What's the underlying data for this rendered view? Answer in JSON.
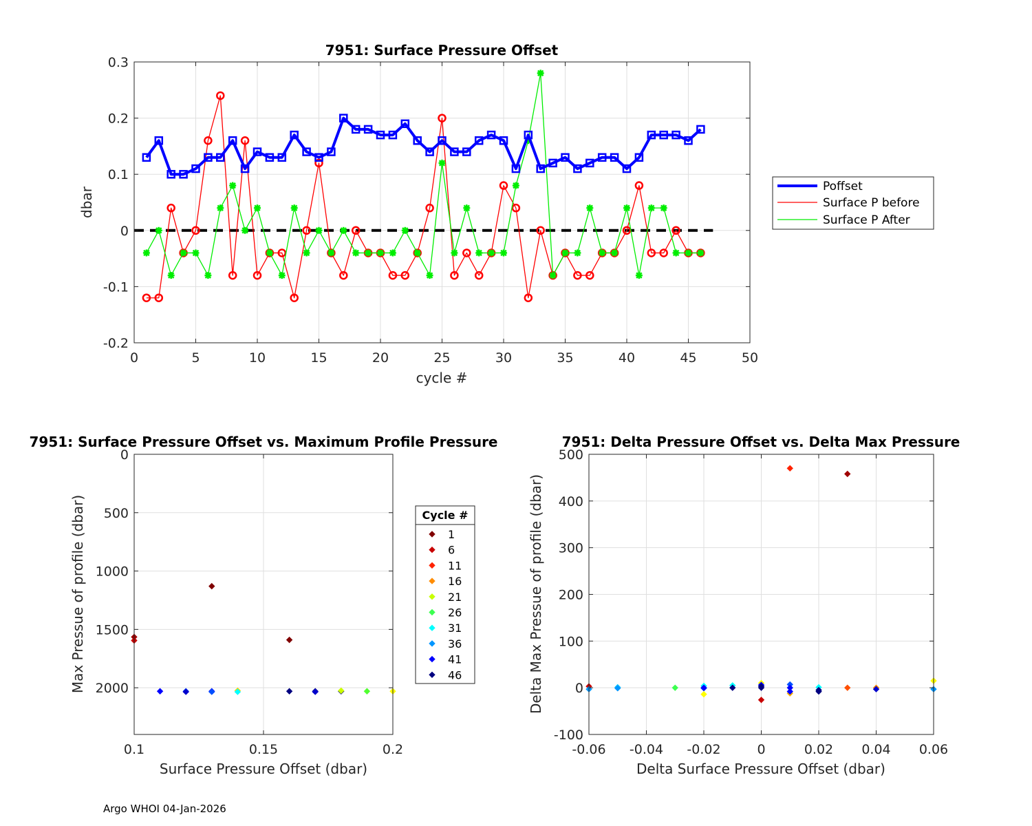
{
  "footer": "Argo WHOI 04-Jan-2026",
  "chart_data": [
    {
      "id": "top",
      "type": "line",
      "title": "7951: Surface Pressure Offset",
      "xlabel": "cycle #",
      "ylabel": "dbar",
      "xlim": [
        0,
        50
      ],
      "ylim": [
        -0.2,
        0.3
      ],
      "xticks": [
        0,
        5,
        10,
        15,
        20,
        25,
        30,
        35,
        40,
        45,
        50
      ],
      "yticks": [
        -0.2,
        -0.1,
        0,
        0.1,
        0.2,
        0.3
      ],
      "grid": true,
      "legend_position": "outside-right",
      "zero_line": {
        "from": 0,
        "to": 47,
        "color": "#000000",
        "style": "dashed"
      },
      "x": [
        1,
        2,
        3,
        4,
        5,
        6,
        7,
        8,
        9,
        10,
        11,
        12,
        13,
        14,
        15,
        16,
        17,
        18,
        19,
        20,
        21,
        22,
        23,
        24,
        25,
        26,
        27,
        28,
        29,
        30,
        31,
        32,
        33,
        34,
        35,
        36,
        37,
        38,
        39,
        40,
        41,
        42,
        43,
        44,
        45,
        46
      ],
      "series": [
        {
          "name": "Poffset",
          "color": "#0000ff",
          "marker": "square",
          "width": "thick",
          "values": [
            0.13,
            0.16,
            0.1,
            0.1,
            0.11,
            0.13,
            0.13,
            0.16,
            0.11,
            0.14,
            0.13,
            0.13,
            0.17,
            0.14,
            0.13,
            0.14,
            0.2,
            0.18,
            0.18,
            0.17,
            0.17,
            0.19,
            0.16,
            0.14,
            0.16,
            0.14,
            0.14,
            0.16,
            0.17,
            0.16,
            0.11,
            0.17,
            0.11,
            0.12,
            0.13,
            0.11,
            0.12,
            0.13,
            0.13,
            0.11,
            0.13,
            0.17,
            0.17,
            0.17,
            0.16,
            0.18
          ]
        },
        {
          "name": "Surface P before",
          "color": "#ff0000",
          "marker": "circle",
          "width": "thin",
          "values": [
            -0.12,
            -0.12,
            0.04,
            -0.04,
            0.0,
            0.16,
            0.24,
            -0.08,
            0.16,
            -0.08,
            -0.04,
            -0.04,
            -0.12,
            0.0,
            0.12,
            -0.04,
            -0.08,
            0.0,
            -0.04,
            -0.04,
            -0.08,
            -0.08,
            -0.04,
            0.04,
            0.2,
            -0.08,
            -0.04,
            -0.08,
            -0.04,
            0.08,
            0.04,
            -0.12,
            0.0,
            -0.08,
            -0.04,
            -0.08,
            -0.08,
            -0.04,
            -0.04,
            0.0,
            0.08,
            -0.04,
            -0.04,
            0.0,
            -0.04,
            -0.04
          ]
        },
        {
          "name": "Surface P After",
          "color": "#00ee00",
          "marker": "star",
          "width": "thin",
          "values": [
            -0.04,
            0.0,
            -0.08,
            -0.04,
            -0.04,
            -0.08,
            0.04,
            0.08,
            0.0,
            0.04,
            -0.04,
            -0.08,
            0.04,
            -0.04,
            0.0,
            -0.04,
            0.0,
            -0.04,
            -0.04,
            -0.04,
            -0.04,
            0.0,
            -0.04,
            -0.08,
            0.12,
            -0.04,
            0.04,
            -0.04,
            -0.04,
            -0.04,
            0.08,
            0.16,
            0.28,
            -0.08,
            -0.04,
            -0.04,
            0.04,
            -0.04,
            -0.04,
            0.04,
            -0.08,
            0.04,
            0.04,
            -0.04,
            -0.04,
            -0.04
          ]
        }
      ]
    },
    {
      "id": "bottom-left",
      "type": "scatter",
      "title": "7951: Surface Pressure Offset vs. Maximum Profile Pressure",
      "xlabel": "Surface Pressure Offset (dbar)",
      "ylabel": "Max Pressue of profile (dbar)",
      "xlim": [
        0.1,
        0.2
      ],
      "ylim": [
        0,
        2400
      ],
      "y_reversed": true,
      "xticks": [
        0.1,
        0.15,
        0.2
      ],
      "yticks": [
        0,
        500,
        1000,
        1500,
        2000
      ],
      "grid": true,
      "legend_title": "Cycle #",
      "legend": [
        {
          "label": "1",
          "color": "#800000"
        },
        {
          "label": "6",
          "color": "#c80000"
        },
        {
          "label": "11",
          "color": "#ff2200"
        },
        {
          "label": "16",
          "color": "#ff8c00"
        },
        {
          "label": "21",
          "color": "#c8ff00"
        },
        {
          "label": "26",
          "color": "#3cff50"
        },
        {
          "label": "31",
          "color": "#00ffff"
        },
        {
          "label": "36",
          "color": "#0096ff"
        },
        {
          "label": "41",
          "color": "#0000ff"
        },
        {
          "label": "46",
          "color": "#000080"
        }
      ],
      "points": [
        {
          "x": 0.1,
          "y": 1565,
          "color": "#a00000"
        },
        {
          "x": 0.1,
          "y": 1595,
          "color": "#c80000"
        },
        {
          "x": 0.13,
          "y": 1130,
          "color": "#800000"
        },
        {
          "x": 0.16,
          "y": 1590,
          "color": "#800000"
        },
        {
          "x": 0.11,
          "y": 2030,
          "color": "#0000ff"
        },
        {
          "x": 0.12,
          "y": 2030,
          "color": "#0046ff"
        },
        {
          "x": 0.12,
          "y": 2035,
          "color": "#0000cc"
        },
        {
          "x": 0.13,
          "y": 2030,
          "color": "#0000ff"
        },
        {
          "x": 0.13,
          "y": 2035,
          "color": "#0050ff"
        },
        {
          "x": 0.14,
          "y": 2025,
          "color": "#ffd700"
        },
        {
          "x": 0.14,
          "y": 2035,
          "color": "#00ffff"
        },
        {
          "x": 0.16,
          "y": 2030,
          "color": "#000080"
        },
        {
          "x": 0.17,
          "y": 2030,
          "color": "#000080"
        },
        {
          "x": 0.17,
          "y": 2035,
          "color": "#0000cc"
        },
        {
          "x": 0.18,
          "y": 2030,
          "color": "#000080"
        },
        {
          "x": 0.18,
          "y": 2025,
          "color": "#ccff00"
        },
        {
          "x": 0.19,
          "y": 2030,
          "color": "#50ff30"
        },
        {
          "x": 0.2,
          "y": 2030,
          "color": "#ffff00"
        }
      ]
    },
    {
      "id": "bottom-right",
      "type": "scatter",
      "title": "7951: Delta Pressure Offset vs. Delta Max Pressure",
      "xlabel": "Delta Surface Pressure Offset (dbar)",
      "ylabel": "Delta Max Pressue of profile (dbar)",
      "xlim": [
        -0.06,
        0.06
      ],
      "ylim": [
        -100,
        500
      ],
      "xticks": [
        -0.06,
        -0.04,
        -0.02,
        0,
        0.02,
        0.04,
        0.06
      ],
      "yticks": [
        -100,
        0,
        100,
        200,
        300,
        400,
        500
      ],
      "grid": true,
      "points": [
        {
          "x": -0.06,
          "y": 3,
          "color": "#c80000"
        },
        {
          "x": -0.06,
          "y": -3,
          "color": "#0096ff"
        },
        {
          "x": -0.05,
          "y": 1,
          "color": "#00c8ff"
        },
        {
          "x": -0.05,
          "y": -1,
          "color": "#0096ff"
        },
        {
          "x": -0.03,
          "y": 0,
          "color": "#3cff50"
        },
        {
          "x": -0.02,
          "y": 4,
          "color": "#00ffff"
        },
        {
          "x": -0.02,
          "y": -1,
          "color": "#0050ff"
        },
        {
          "x": -0.02,
          "y": -14,
          "color": "#ffff00"
        },
        {
          "x": -0.02,
          "y": 0,
          "color": "#0000ff"
        },
        {
          "x": -0.01,
          "y": 5,
          "color": "#00ffff"
        },
        {
          "x": -0.01,
          "y": 0,
          "color": "#000080"
        },
        {
          "x": 0.0,
          "y": 10,
          "color": "#ffff00"
        },
        {
          "x": 0.0,
          "y": 6,
          "color": "#0000ff"
        },
        {
          "x": 0.0,
          "y": 3,
          "color": "#000080"
        },
        {
          "x": 0.0,
          "y": 0,
          "color": "#000080"
        },
        {
          "x": 0.0,
          "y": -26,
          "color": "#c80000"
        },
        {
          "x": 0.01,
          "y": 470,
          "color": "#ff2200"
        },
        {
          "x": 0.01,
          "y": 7,
          "color": "#0050ff"
        },
        {
          "x": 0.01,
          "y": 0,
          "color": "#0000ff"
        },
        {
          "x": 0.01,
          "y": -12,
          "color": "#ffb000"
        },
        {
          "x": 0.01,
          "y": -8,
          "color": "#0000ff"
        },
        {
          "x": 0.02,
          "y": 1,
          "color": "#00ffff"
        },
        {
          "x": 0.02,
          "y": -5,
          "color": "#000080"
        },
        {
          "x": 0.02,
          "y": -8,
          "color": "#000080"
        },
        {
          "x": 0.03,
          "y": 458,
          "color": "#a00000"
        },
        {
          "x": 0.03,
          "y": 0,
          "color": "#ff5000"
        },
        {
          "x": 0.04,
          "y": 0,
          "color": "#ff8c00"
        },
        {
          "x": 0.04,
          "y": -3,
          "color": "#0000cc"
        },
        {
          "x": 0.06,
          "y": 15,
          "color": "#ffff00"
        },
        {
          "x": 0.06,
          "y": -3,
          "color": "#0096ff"
        }
      ]
    }
  ]
}
